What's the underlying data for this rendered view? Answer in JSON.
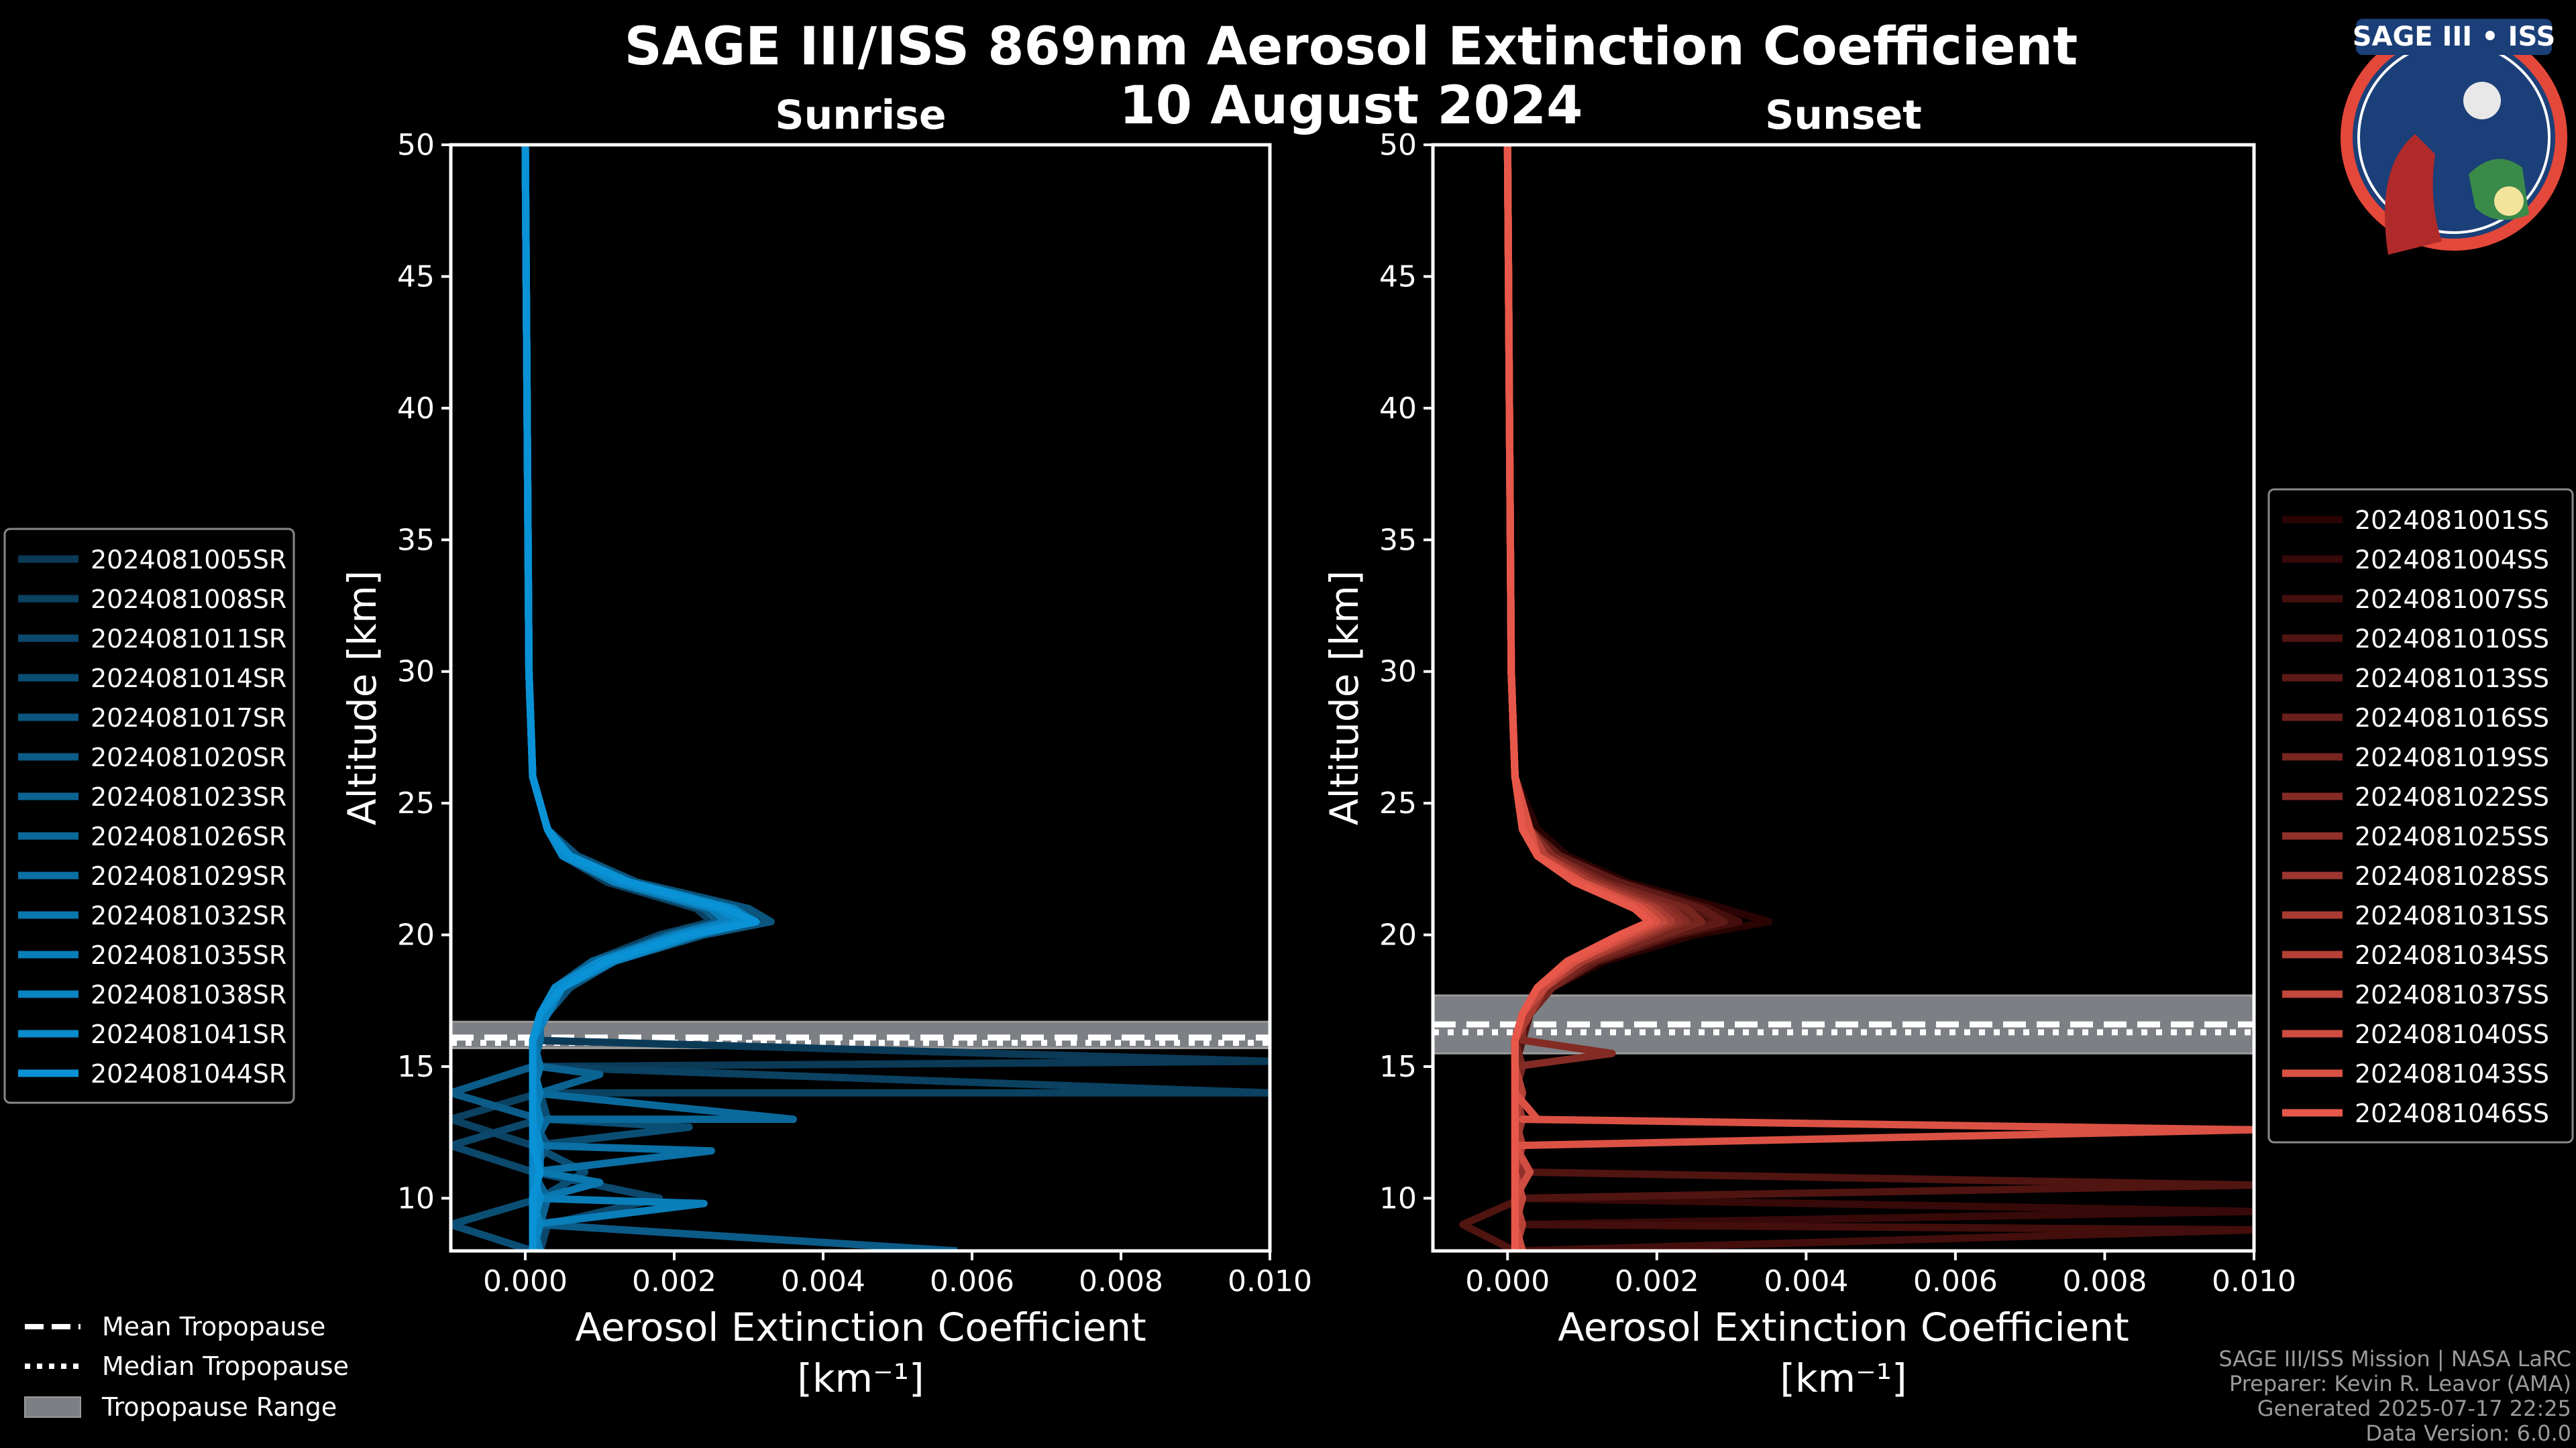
{
  "title": "SAGE III/ISS 869nm Aerosol Extinction Coefficient",
  "date": "10 August 2024",
  "logo_text": "SAGE III • ISS",
  "footer": [
    "SAGE III/ISS Mission | NASA LaRC",
    "Preparer: Kevin R. Leavor (AMA)",
    "Generated 2025-07-17 22:25",
    "Data Version: 6.0.0"
  ],
  "tropo_legend": {
    "mean": "Mean Tropopause",
    "median": "Median Tropopause",
    "range": "Tropopause Range"
  },
  "chart_data": [
    {
      "type": "line",
      "title": "Sunrise",
      "xlabel": "Aerosol Extinction Coefficient",
      "xunits": "[km⁻¹]",
      "ylabel": "Altitude [km]",
      "xlim": [
        -0.001,
        0.01
      ],
      "ylim": [
        8,
        50
      ],
      "xticks": [
        "0.000",
        "0.002",
        "0.004",
        "0.006",
        "0.008",
        "0.010"
      ],
      "xtick_values": [
        0,
        0.002,
        0.004,
        0.006,
        0.008,
        0.01
      ],
      "yticks": [
        10,
        15,
        20,
        25,
        30,
        35,
        40,
        45,
        50
      ],
      "legend_position": "left-outside",
      "tropopause": {
        "mean": 16.1,
        "median": 15.9,
        "range": [
          15.7,
          16.7
        ]
      },
      "values_scale": 0.001,
      "altitudes": [
        8,
        9,
        10,
        11,
        12,
        13,
        14,
        15,
        16,
        17,
        18,
        19,
        20,
        20.5,
        21,
        22,
        23,
        24,
        26,
        30,
        50
      ],
      "color_start": "#0b3a57",
      "color_end": "#0a92d6",
      "series": [
        {
          "name": "2024081005SR",
          "values": [
            0.2,
            0.1,
            0.3,
            0.1,
            0.2,
            0.1,
            0.2,
            0.1,
            0.1,
            0.3,
            0.5,
            1.0,
            2.0,
            2.8,
            2.6,
            1.3,
            0.6,
            0.3,
            0.1,
            0.05,
            0.0
          ],
          "spikes": [
            [
              15.2,
              10.0
            ]
          ]
        },
        {
          "name": "2024081008SR",
          "values": [
            0.1,
            0.2,
            0.1,
            0.2,
            0.1,
            -1.0,
            0.2,
            0.1,
            0.1,
            0.2,
            0.4,
            0.9,
            1.8,
            2.5,
            2.3,
            1.1,
            0.5,
            0.3,
            0.1,
            0.05,
            0.0
          ],
          "spikes": [
            [
              14.0,
              10.0
            ]
          ]
        },
        {
          "name": "2024081011SR",
          "values": [
            0.2,
            0.3,
            1.8,
            0.1,
            -1.0,
            0.2,
            0.1,
            0.1,
            0.2,
            0.2,
            0.5,
            1.1,
            2.2,
            3.0,
            2.7,
            1.4,
            0.6,
            0.3,
            0.1,
            0.05,
            0.0
          ],
          "spikes": []
        },
        {
          "name": "2024081014SR",
          "values": [
            0.1,
            -1.0,
            0.2,
            0.8,
            0.1,
            0.3,
            0.2,
            0.1,
            0.1,
            0.2,
            0.4,
            1.0,
            2.1,
            2.7,
            2.5,
            1.2,
            0.5,
            0.3,
            0.1,
            0.05,
            0.0
          ],
          "spikes": [
            [
              12.7,
              2.2
            ]
          ]
        },
        {
          "name": "2024081017SR",
          "values": [
            0.2,
            0.1,
            0.2,
            0.1,
            0.3,
            0.1,
            0.1,
            0.2,
            0.1,
            0.3,
            0.6,
            1.2,
            2.4,
            3.3,
            3.0,
            1.5,
            0.7,
            0.3,
            0.1,
            0.05,
            0.0
          ],
          "spikes": []
        },
        {
          "name": "2024081020SR",
          "values": [
            5.8,
            0.2,
            0.1,
            0.2,
            0.1,
            0.2,
            -1.0,
            0.1,
            0.2,
            0.2,
            0.5,
            1.0,
            1.9,
            2.6,
            2.4,
            1.2,
            0.5,
            0.3,
            0.1,
            0.05,
            0.0
          ],
          "spikes": []
        },
        {
          "name": "2024081023SR",
          "values": [
            0.1,
            0.2,
            0.3,
            0.1,
            0.2,
            0.1,
            0.2,
            0.2,
            0.1,
            0.2,
            0.4,
            0.9,
            2.0,
            2.8,
            2.6,
            1.3,
            0.5,
            0.3,
            0.1,
            0.05,
            0.0
          ],
          "spikes": [
            [
              14.7,
              1.0
            ]
          ]
        },
        {
          "name": "2024081026SR",
          "values": [
            0.2,
            0.1,
            0.1,
            0.2,
            0.1,
            0.3,
            0.1,
            0.1,
            0.1,
            0.3,
            0.5,
            1.1,
            2.1,
            2.9,
            2.7,
            1.3,
            0.6,
            0.3,
            0.1,
            0.05,
            0.0
          ],
          "spikes": [
            [
              13.0,
              3.6
            ]
          ]
        },
        {
          "name": "2024081029SR",
          "values": [
            0.1,
            0.2,
            0.1,
            0.1,
            0.2,
            0.1,
            0.2,
            0.1,
            0.2,
            0.2,
            0.4,
            1.0,
            2.0,
            2.7,
            2.5,
            1.2,
            0.5,
            0.3,
            0.1,
            0.05,
            0.0
          ],
          "spikes": [
            [
              11.8,
              2.5
            ]
          ]
        },
        {
          "name": "2024081032SR",
          "values": [
            0.1,
            0.1,
            0.2,
            0.2,
            0.1,
            0.2,
            0.1,
            0.2,
            0.1,
            0.2,
            0.5,
            1.1,
            2.3,
            3.1,
            2.8,
            1.4,
            0.6,
            0.3,
            0.1,
            0.05,
            0.0
          ],
          "spikes": [
            [
              10.6,
              1.0
            ]
          ]
        },
        {
          "name": "2024081035SR",
          "values": [
            0.2,
            0.1,
            0.1,
            0.2,
            0.2,
            0.1,
            0.2,
            0.1,
            0.1,
            0.2,
            0.4,
            1.0,
            2.0,
            2.7,
            2.5,
            1.2,
            0.5,
            0.3,
            0.1,
            0.05,
            0.0
          ],
          "spikes": [
            [
              9.8,
              2.4
            ]
          ]
        },
        {
          "name": "2024081038SR",
          "values": [
            0.1,
            0.2,
            0.1,
            0.1,
            0.1,
            0.2,
            0.1,
            0.1,
            0.1,
            0.3,
            0.5,
            1.2,
            2.3,
            3.0,
            2.8,
            1.4,
            0.6,
            0.3,
            0.1,
            0.05,
            0.0
          ],
          "spikes": []
        },
        {
          "name": "2024081041SR",
          "values": [
            0.1,
            0.1,
            0.2,
            0.1,
            0.2,
            0.1,
            0.1,
            0.1,
            0.1,
            0.2,
            0.4,
            1.0,
            2.1,
            2.9,
            2.6,
            1.3,
            0.5,
            0.3,
            0.1,
            0.05,
            0.0
          ],
          "spikes": []
        },
        {
          "name": "2024081044SR",
          "values": [
            0.1,
            0.1,
            0.1,
            0.2,
            0.1,
            0.1,
            0.1,
            0.1,
            0.1,
            0.2,
            0.5,
            1.1,
            2.2,
            3.1,
            2.7,
            1.4,
            0.6,
            0.3,
            0.1,
            0.05,
            0.0
          ],
          "spikes": []
        }
      ]
    },
    {
      "type": "line",
      "title": "Sunset",
      "xlabel": "Aerosol Extinction Coefficient",
      "xunits": "[km⁻¹]",
      "ylabel": "Altitude [km]",
      "xlim": [
        -0.001,
        0.01
      ],
      "ylim": [
        8,
        50
      ],
      "xticks": [
        "0.000",
        "0.002",
        "0.004",
        "0.006",
        "0.008",
        "0.010"
      ],
      "xtick_values": [
        0,
        0.002,
        0.004,
        0.006,
        0.008,
        0.01
      ],
      "yticks": [
        10,
        15,
        20,
        25,
        30,
        35,
        40,
        45,
        50
      ],
      "legend_position": "right-outside",
      "tropopause": {
        "mean": 16.6,
        "median": 16.3,
        "range": [
          15.5,
          17.7
        ]
      },
      "values_scale": 0.001,
      "altitudes": [
        8,
        9,
        10,
        11,
        12,
        13,
        14,
        15,
        16,
        17,
        18,
        19,
        20,
        20.5,
        21,
        22,
        23,
        24,
        26,
        30,
        50
      ],
      "color_start": "#2a0303",
      "color_end": "#e8584a",
      "series": [
        {
          "name": "2024081001SS",
          "values": [
            0.1,
            0.1,
            0.2,
            0.1,
            0.1,
            0.1,
            0.1,
            0.1,
            0.2,
            0.3,
            0.6,
            1.3,
            2.5,
            3.5,
            2.9,
            1.6,
            0.8,
            0.4,
            0.1,
            0.05,
            0.0
          ],
          "spikes": []
        },
        {
          "name": "2024081004SS",
          "values": [
            0.2,
            0.1,
            0.1,
            0.1,
            0.2,
            0.1,
            0.1,
            0.2,
            0.1,
            0.3,
            0.5,
            1.1,
            2.2,
            3.0,
            2.6,
            1.5,
            0.7,
            0.3,
            0.1,
            0.05,
            0.0
          ],
          "spikes": [
            [
              9.5,
              10.0
            ]
          ]
        },
        {
          "name": "2024081007SS",
          "values": [
            0.1,
            0.2,
            0.1,
            0.2,
            0.1,
            0.1,
            0.1,
            0.1,
            0.1,
            0.3,
            0.6,
            1.2,
            2.3,
            3.1,
            2.7,
            1.5,
            0.7,
            0.3,
            0.1,
            0.05,
            0.0
          ],
          "spikes": [
            [
              8.8,
              10.0
            ]
          ]
        },
        {
          "name": "2024081010SS",
          "values": [
            0.1,
            -0.6,
            0.2,
            0.1,
            0.1,
            0.2,
            0.1,
            0.1,
            0.2,
            0.3,
            0.5,
            1.1,
            2.0,
            2.8,
            2.5,
            1.4,
            0.6,
            0.3,
            0.1,
            0.05,
            0.0
          ],
          "spikes": [
            [
              10.5,
              10.0
            ]
          ]
        },
        {
          "name": "2024081013SS",
          "values": [
            0.1,
            0.1,
            0.1,
            0.2,
            0.1,
            0.1,
            0.2,
            0.1,
            0.1,
            0.3,
            0.6,
            1.2,
            2.2,
            2.9,
            2.6,
            1.5,
            0.7,
            0.3,
            0.1,
            0.05,
            0.0
          ],
          "spikes": []
        },
        {
          "name": "2024081016SS",
          "values": [
            0.2,
            0.1,
            0.1,
            0.1,
            0.1,
            0.2,
            0.1,
            0.1,
            0.1,
            0.2,
            0.5,
            1.0,
            1.9,
            2.5,
            2.3,
            1.3,
            0.6,
            0.3,
            0.1,
            0.05,
            0.0
          ],
          "spikes": []
        },
        {
          "name": "2024081019SS",
          "values": [
            0.1,
            0.1,
            0.2,
            0.1,
            0.2,
            0.1,
            0.1,
            0.2,
            0.1,
            0.3,
            0.6,
            1.1,
            2.1,
            2.6,
            2.4,
            1.3,
            0.6,
            0.3,
            0.1,
            0.05,
            0.0
          ],
          "spikes": []
        },
        {
          "name": "2024081022SS",
          "values": [
            0.1,
            0.2,
            0.1,
            0.1,
            0.1,
            0.1,
            0.2,
            0.1,
            0.2,
            0.2,
            0.5,
            1.0,
            1.8,
            2.4,
            2.2,
            1.2,
            0.6,
            0.3,
            0.1,
            0.05,
            0.0
          ],
          "spikes": [
            [
              15.5,
              1.4
            ]
          ]
        },
        {
          "name": "2024081025SS",
          "values": [
            0.1,
            0.1,
            0.1,
            0.2,
            0.1,
            0.1,
            0.1,
            0.1,
            0.1,
            0.3,
            0.5,
            1.0,
            1.9,
            2.3,
            2.1,
            1.2,
            0.5,
            0.3,
            0.1,
            0.05,
            0.0
          ],
          "spikes": []
        },
        {
          "name": "2024081028SS",
          "values": [
            0.2,
            0.1,
            0.2,
            0.1,
            0.1,
            0.2,
            0.1,
            0.1,
            0.1,
            0.2,
            0.4,
            0.9,
            1.7,
            2.2,
            2.0,
            1.1,
            0.5,
            0.3,
            0.1,
            0.05,
            0.0
          ],
          "spikes": []
        },
        {
          "name": "2024081031SS",
          "values": [
            0.1,
            0.1,
            0.1,
            0.1,
            0.2,
            0.1,
            0.1,
            0.1,
            0.1,
            0.3,
            0.5,
            1.0,
            1.8,
            2.2,
            2.0,
            1.1,
            0.5,
            0.3,
            0.1,
            0.05,
            0.0
          ],
          "spikes": []
        },
        {
          "name": "2024081034SS",
          "values": [
            0.1,
            0.2,
            0.1,
            0.1,
            0.1,
            0.1,
            0.2,
            0.1,
            0.1,
            0.2,
            0.4,
            0.9,
            1.6,
            2.0,
            1.9,
            1.0,
            0.5,
            0.3,
            0.1,
            0.05,
            0.0
          ],
          "spikes": []
        },
        {
          "name": "2024081037SS",
          "values": [
            0.1,
            0.1,
            0.2,
            0.1,
            0.1,
            0.1,
            0.1,
            0.1,
            0.1,
            0.2,
            0.5,
            0.9,
            1.7,
            2.1,
            1.9,
            1.0,
            0.4,
            0.3,
            0.1,
            0.05,
            0.0
          ],
          "spikes": []
        },
        {
          "name": "2024081040SS",
          "values": [
            0.2,
            0.1,
            0.1,
            0.3,
            0.1,
            0.1,
            0.1,
            0.1,
            0.1,
            0.2,
            0.4,
            0.8,
            1.5,
            1.9,
            1.8,
            0.9,
            0.4,
            0.2,
            0.1,
            0.05,
            0.0
          ],
          "spikes": []
        },
        {
          "name": "2024081043SS",
          "values": [
            0.1,
            0.1,
            0.1,
            0.1,
            0.1,
            0.2,
            0.1,
            0.1,
            0.1,
            0.2,
            0.4,
            0.9,
            1.6,
            2.0,
            1.8,
            1.0,
            0.4,
            0.3,
            0.1,
            0.05,
            0.0
          ],
          "spikes": [
            [
              13.0,
              0.4
            ],
            [
              12.6,
              10.0
            ]
          ]
        },
        {
          "name": "2024081046SS",
          "values": [
            0.1,
            0.1,
            0.1,
            0.1,
            0.1,
            0.1,
            0.1,
            0.1,
            0.1,
            0.2,
            0.4,
            0.8,
            1.5,
            1.9,
            1.7,
            0.9,
            0.4,
            0.2,
            0.1,
            0.05,
            0.0
          ],
          "spikes": []
        }
      ]
    }
  ]
}
